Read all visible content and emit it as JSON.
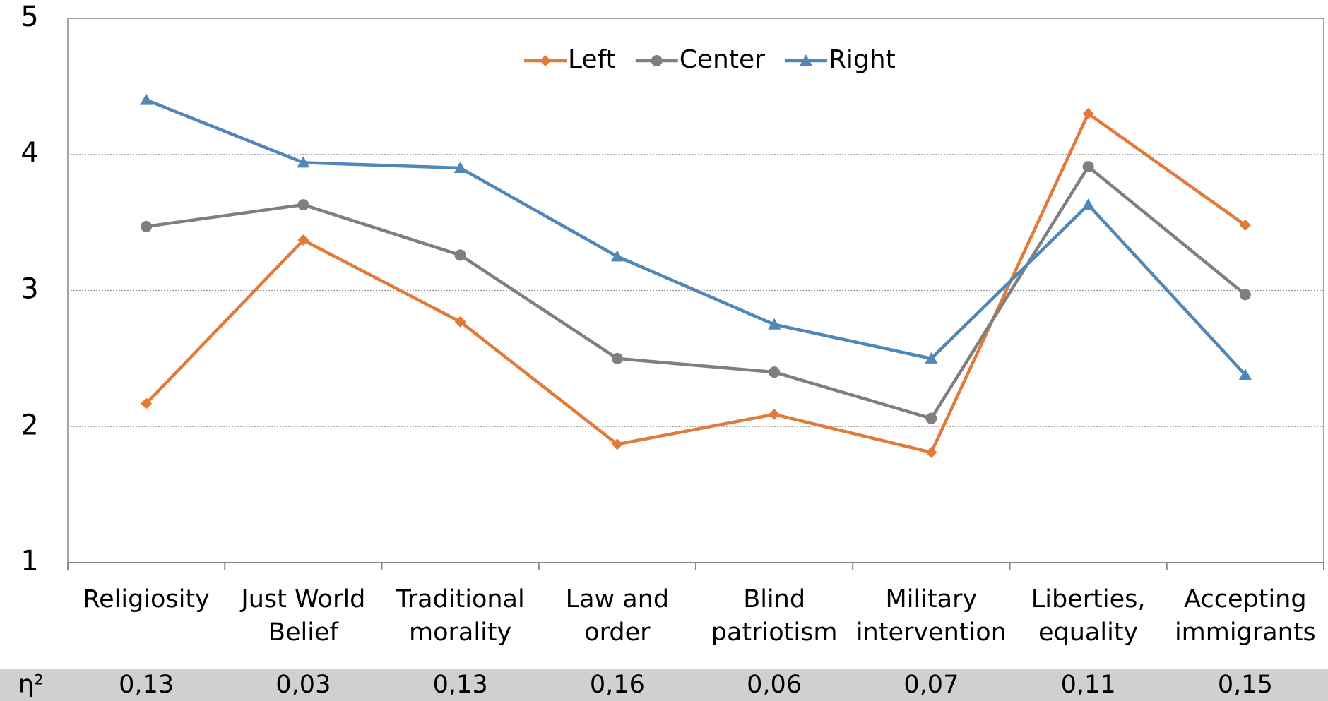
{
  "chart_data": {
    "type": "line",
    "categories": [
      "Religiosity",
      "Just World\nBelief",
      "Traditional\nmorality",
      "Law and\norder",
      "Blind\npatriotism",
      "Military\nintervention",
      "Liberties,\nequality",
      "Accepting\nimmigrants"
    ],
    "series": [
      {
        "name": "Left",
        "color": "#e07b3b",
        "marker": "diamond",
        "values": [
          2.17,
          3.37,
          2.77,
          1.87,
          2.09,
          1.81,
          4.3,
          3.48
        ]
      },
      {
        "name": "Center",
        "color": "#7f7f7f",
        "marker": "circle",
        "values": [
          3.47,
          3.63,
          3.26,
          2.5,
          2.4,
          2.06,
          3.91,
          2.97
        ]
      },
      {
        "name": "Right",
        "color": "#4f87b8",
        "marker": "triangle",
        "values": [
          4.4,
          3.94,
          3.9,
          3.25,
          2.75,
          2.5,
          3.63,
          2.38
        ]
      }
    ],
    "ylim": [
      1,
      5
    ],
    "yticks": [
      1,
      2,
      3,
      4,
      5
    ],
    "grid": true,
    "legend": "top",
    "eta_row": {
      "label": "η²",
      "values": [
        "0,13",
        "0,03",
        "0,13",
        "0,16",
        "0,06",
        "0,07",
        "0,11",
        "0,15"
      ]
    }
  }
}
